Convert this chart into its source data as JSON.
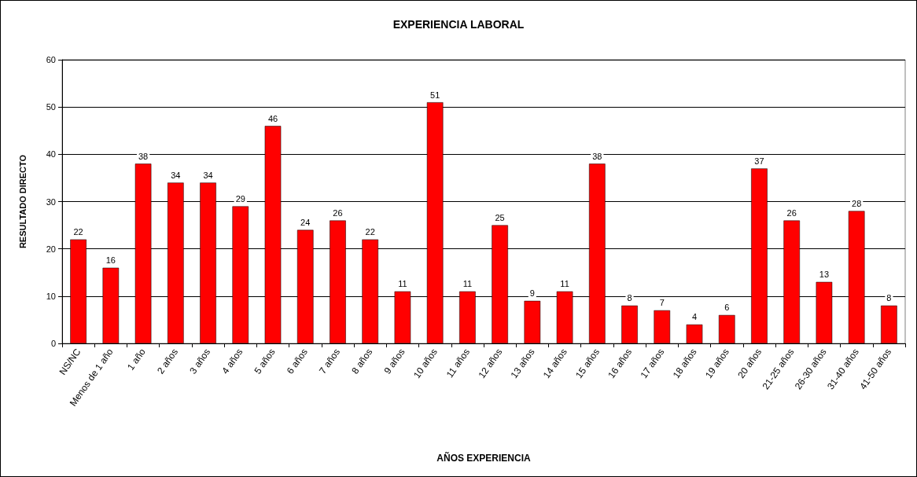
{
  "chart_data": {
    "type": "bar",
    "title": "EXPERIENCIA LABORAL",
    "xlabel": "AÑOS EXPERIENCIA",
    "ylabel": "RESULTADO DIRECTO",
    "categories": [
      "NS/NC",
      "Menos de 1 año",
      "1 año",
      "2 años",
      "3 años",
      "4 años",
      "5 años",
      "6 años",
      "7 años",
      "8 años",
      "9 años",
      "10 años",
      "11 años",
      "12 años",
      "13 años",
      "14 años",
      "15 años",
      "16 años",
      "17 años",
      "18 años",
      "19 años",
      "20 años",
      "21-25 años",
      "26-30 años",
      "31-40 años",
      "41-50 años"
    ],
    "values": [
      22,
      16,
      38,
      34,
      34,
      29,
      46,
      24,
      26,
      22,
      11,
      51,
      11,
      25,
      9,
      11,
      38,
      8,
      7,
      4,
      6,
      37,
      26,
      13,
      28,
      8
    ],
    "color": "#ff0000",
    "ylim": [
      0,
      60
    ],
    "yticks": [
      0,
      10,
      20,
      30,
      40,
      50,
      60
    ],
    "grid": "y",
    "data_labels": true
  }
}
